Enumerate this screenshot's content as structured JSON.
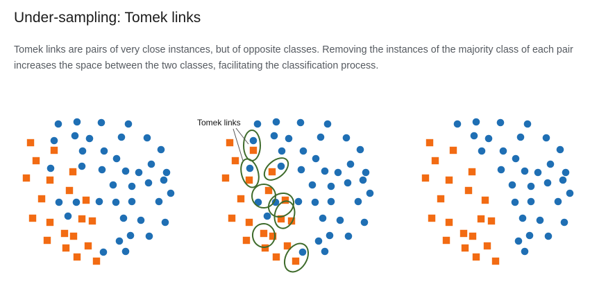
{
  "page": {
    "title": "Under-sampling: Tomek links",
    "description": "Tomek links are pairs of very close instances, but of opposite classes. Removing the instances of the majority class of each pair increases the space between the two classes, facilitating the classification process."
  },
  "diagram": {
    "callout_label": "Tomek links",
    "colors": {
      "majority_circle": "#1f6fb4",
      "minority_square": "#f26b13",
      "link_ellipse": "#3e6b2b",
      "pointer_line": "#555555"
    },
    "panels": [
      "original dataset",
      "dataset with Tomek links marked",
      "dataset after removing majority instances of Tomek links"
    ]
  }
}
